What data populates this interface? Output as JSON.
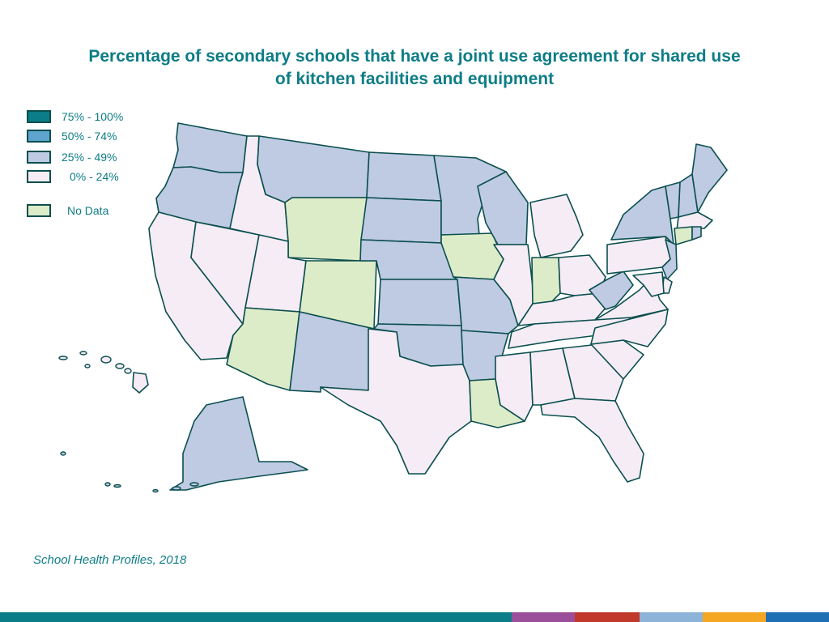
{
  "title": {
    "line1": "Percentage of secondary schools that have a joint use agreement for shared use",
    "line2": "of kitchen facilities and equipment"
  },
  "legend": {
    "items": [
      {
        "label": "75% - 100%",
        "color": "#0b7d86"
      },
      {
        "label": "50% - 74%",
        "color": "#5fa3cf"
      },
      {
        "label": "25% - 49%",
        "color": "#bfcbe3"
      },
      {
        "label": "0% - 24%",
        "color": "#f5ecf5"
      }
    ],
    "no_data": {
      "label": "No Data",
      "color": "#ddecc8"
    }
  },
  "map": {
    "states": [
      {
        "name": "WA",
        "category": "25-49"
      },
      {
        "name": "OR",
        "category": "25-49"
      },
      {
        "name": "CA",
        "category": "0-24"
      },
      {
        "name": "NV",
        "category": "0-24"
      },
      {
        "name": "ID",
        "category": "0-24"
      },
      {
        "name": "MT",
        "category": "25-49"
      },
      {
        "name": "WY",
        "category": "No Data"
      },
      {
        "name": "UT",
        "category": "0-24"
      },
      {
        "name": "CO",
        "category": "No Data"
      },
      {
        "name": "AZ",
        "category": "No Data"
      },
      {
        "name": "NM",
        "category": "25-49"
      },
      {
        "name": "ND",
        "category": "25-49"
      },
      {
        "name": "SD",
        "category": "25-49"
      },
      {
        "name": "NE",
        "category": "25-49"
      },
      {
        "name": "KS",
        "category": "25-49"
      },
      {
        "name": "OK",
        "category": "25-49"
      },
      {
        "name": "TX",
        "category": "0-24"
      },
      {
        "name": "MN",
        "category": "25-49"
      },
      {
        "name": "IA",
        "category": "No Data"
      },
      {
        "name": "MO",
        "category": "25-49"
      },
      {
        "name": "AR",
        "category": "25-49"
      },
      {
        "name": "LA",
        "category": "No Data"
      },
      {
        "name": "WI",
        "category": "25-49"
      },
      {
        "name": "IL",
        "category": "0-24"
      },
      {
        "name": "MI",
        "category": "0-24"
      },
      {
        "name": "IN",
        "category": "No Data"
      },
      {
        "name": "OH",
        "category": "0-24"
      },
      {
        "name": "KY",
        "category": "0-24"
      },
      {
        "name": "TN",
        "category": "0-24"
      },
      {
        "name": "MS",
        "category": "0-24"
      },
      {
        "name": "AL",
        "category": "0-24"
      },
      {
        "name": "GA",
        "category": "0-24"
      },
      {
        "name": "FL",
        "category": "0-24"
      },
      {
        "name": "SC",
        "category": "0-24"
      },
      {
        "name": "NC",
        "category": "0-24"
      },
      {
        "name": "VA",
        "category": "0-24"
      },
      {
        "name": "WV",
        "category": "25-49"
      },
      {
        "name": "PA",
        "category": "0-24"
      },
      {
        "name": "NY",
        "category": "25-49"
      },
      {
        "name": "VT",
        "category": "25-49"
      },
      {
        "name": "NH",
        "category": "25-49"
      },
      {
        "name": "ME",
        "category": "25-49"
      },
      {
        "name": "MA",
        "category": "0-24"
      },
      {
        "name": "CT",
        "category": "No Data"
      },
      {
        "name": "RI",
        "category": "25-49"
      },
      {
        "name": "NJ",
        "category": "25-49"
      },
      {
        "name": "DE",
        "category": "0-24"
      },
      {
        "name": "MD",
        "category": "0-24"
      },
      {
        "name": "AK",
        "category": "25-49"
      },
      {
        "name": "HI",
        "category": "0-24"
      }
    ]
  },
  "source": "School Health Profiles, 2018",
  "footer_colors": [
    "#0b7d86",
    "#9b4f9a",
    "#c0392b",
    "#8db3d9",
    "#f5a623",
    "#1f6fb5"
  ]
}
